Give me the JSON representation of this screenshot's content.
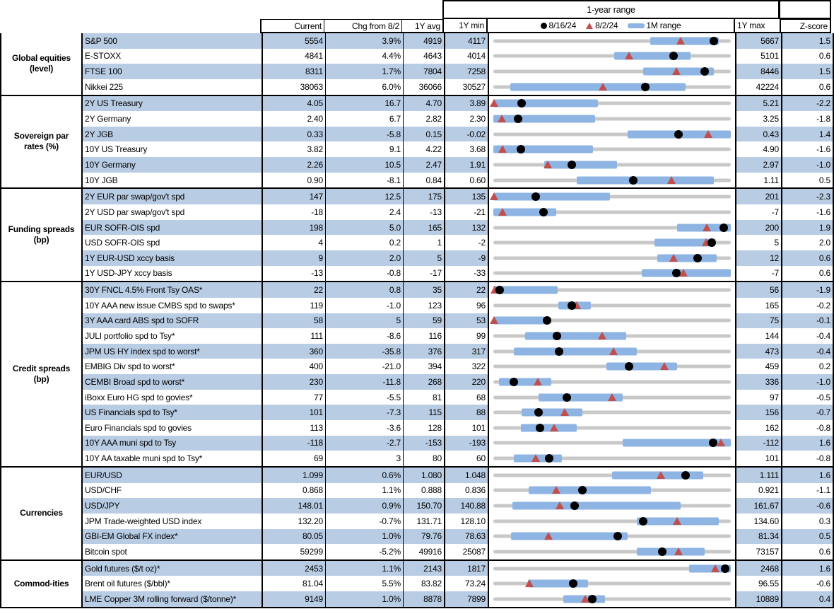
{
  "colors": {
    "row_blue": "#b8cce4",
    "bar_blue": "#8eb4e3",
    "marker_red": "#c0504d",
    "track_gray": "#c8c8c8"
  },
  "header": {
    "range_title": "1-year range",
    "columns": {
      "current": "Current",
      "chg": "Chg from 8/2",
      "avg": "1Y avg",
      "min": "1Y min",
      "max": "1Y max",
      "z": "Z-score"
    },
    "legend": {
      "dot_label": "8/16/24",
      "tri_label": "8/2/24",
      "bar_label": "1M range"
    }
  },
  "chart_data": {
    "type": "table",
    "description": "Market dashboard: current levels vs 1-year range. Gray track spans 1Y min..1Y max, blue bar = 1M range, black dot = 8/16/24 value, red triangle = 8/2/24 value. bar/tri/dot are fractions of the min-max track.",
    "sections": [
      {
        "label": "Global equities (level)",
        "rows": [
          {
            "name": "S&P 500",
            "current": "5554",
            "chg": "3.9%",
            "avg": "4919",
            "min": "4117",
            "max": "5667",
            "z": "1.5",
            "bar": [
              0.66,
              0.95
            ],
            "tri": 0.79,
            "dot": 0.93
          },
          {
            "name": "E-STOXX",
            "current": "4841",
            "chg": "4.4%",
            "avg": "4643",
            "min": "4014",
            "max": "5101",
            "z": "0.6",
            "bar": [
              0.51,
              0.83
            ],
            "tri": 0.57,
            "dot": 0.76
          },
          {
            "name": "FTSE 100",
            "current": "8311",
            "chg": "1.7%",
            "avg": "7804",
            "min": "7258",
            "max": "8446",
            "z": "1.5",
            "bar": [
              0.63,
              0.93
            ],
            "tri": 0.77,
            "dot": 0.89
          },
          {
            "name": "Nikkei 225",
            "current": "38063",
            "chg": "6.0%",
            "avg": "36066",
            "min": "30527",
            "max": "42224",
            "z": "0.6",
            "bar": [
              0.07,
              0.81
            ],
            "tri": 0.46,
            "dot": 0.64
          }
        ]
      },
      {
        "label": "Sovereign par rates (%)",
        "rows": [
          {
            "name": "2Y US Treasury",
            "current": "4.05",
            "chg": "16.7",
            "avg": "4.70",
            "min": "3.89",
            "max": "5.21",
            "z": "-2.2",
            "bar": [
              0,
              0.44
            ],
            "tri": 0.004,
            "dot": 0.12
          },
          {
            "name": "2Y Germany",
            "current": "2.40",
            "chg": "6.7",
            "avg": "2.82",
            "min": "2.30",
            "max": "3.25",
            "z": "-1.8",
            "bar": [
              0,
              0.43
            ],
            "tri": 0.035,
            "dot": 0.105
          },
          {
            "name": "2Y JGB",
            "current": "0.33",
            "chg": "-5.8",
            "avg": "0.15",
            "min": "-0.02",
            "max": "0.43",
            "z": "1.4",
            "bar": [
              0.565,
              1
            ],
            "tri": 0.905,
            "dot": 0.78
          },
          {
            "name": "10Y US Treasury",
            "current": "3.82",
            "chg": "9.1",
            "avg": "4.22",
            "min": "3.68",
            "max": "4.90",
            "z": "-1.6",
            "bar": [
              0,
              0.42
            ],
            "tri": 0.04,
            "dot": 0.115
          },
          {
            "name": "10Y Germany",
            "current": "2.26",
            "chg": "10.5",
            "avg": "2.47",
            "min": "1.91",
            "max": "2.97",
            "z": "-1.0",
            "bar": [
              0.215,
              0.52
            ],
            "tri": 0.23,
            "dot": 0.33
          },
          {
            "name": "10Y JGB",
            "current": "0.90",
            "chg": "-8.1",
            "avg": "0.84",
            "min": "0.60",
            "max": "1.11",
            "z": "0.5",
            "bar": [
              0.35,
              0.93
            ],
            "tri": 0.75,
            "dot": 0.59
          }
        ]
      },
      {
        "label": "Funding spreads (bp)",
        "rows": [
          {
            "name": "2Y EUR par swap/gov't spd",
            "current": "147",
            "chg": "12.5",
            "avg": "175",
            "min": "135",
            "max": "201",
            "z": "-2.3",
            "bar": [
              0,
              0.49
            ],
            "tri": 0.004,
            "dot": 0.18
          },
          {
            "name": "2Y USD par swap/gov't spd",
            "current": "-18",
            "chg": "2.4",
            "avg": "-13",
            "min": "-21",
            "max": "-7",
            "z": "-1.6",
            "bar": [
              0,
              0.265
            ],
            "tri": 0.04,
            "dot": 0.21
          },
          {
            "name": "EUR SOFR-OIS spd",
            "current": "198",
            "chg": "5.0",
            "avg": "165",
            "min": "132",
            "max": "200",
            "z": "1.9",
            "bar": [
              0.775,
              1
            ],
            "tri": 0.9,
            "dot": 0.97
          },
          {
            "name": "USD SOFR-OIS spd",
            "current": "4",
            "chg": "0.2",
            "avg": "1",
            "min": "-2",
            "max": "5",
            "z": "2.0",
            "bar": [
              0.68,
              0.935
            ],
            "tri": 0.895,
            "dot": 0.92
          },
          {
            "name": "1Y EUR-USD xccy basis",
            "current": "9",
            "chg": "2.0",
            "avg": "5",
            "min": "-9",
            "max": "12",
            "z": "0.6",
            "bar": [
              0.69,
              0.94
            ],
            "tri": 0.76,
            "dot": 0.86
          },
          {
            "name": "1Y USD-JPY xccy basis",
            "current": "-13",
            "chg": "-0.8",
            "avg": "-17",
            "min": "-33",
            "max": "-7",
            "z": "0.6",
            "bar": [
              0.625,
              1
            ],
            "tri": 0.8,
            "dot": 0.77
          }
        ]
      },
      {
        "label": "Credit spreads (bp)",
        "rows": [
          {
            "name": "30Y FNCL 4.5% Front Tsy OAS*",
            "current": "22",
            "chg": "0.8",
            "avg": "35",
            "min": "22",
            "max": "56",
            "z": "-1.9",
            "bar": [
              0,
              0.27
            ],
            "tri": 0.005,
            "dot": 0.028
          },
          {
            "name": "10Y AAA new issue CMBS spd to swaps*",
            "current": "119",
            "chg": "-1.0",
            "avg": "123",
            "min": "96",
            "max": "165",
            "z": "-0.2",
            "bar": [
              0.275,
              0.41
            ],
            "tri": 0.35,
            "dot": 0.33
          },
          {
            "name": "3Y AAA card ABS spd to SOFR",
            "current": "58",
            "chg": "5",
            "avg": "59",
            "min": "53",
            "max": "75",
            "z": "-0.1",
            "bar": [
              0,
              0.235
            ],
            "tri": 0.004,
            "dot": 0.227
          },
          {
            "name": "JULI portfolio spd to Tsy*",
            "current": "111",
            "chg": "-8.6",
            "avg": "116",
            "min": "99",
            "max": "144",
            "z": "-0.4",
            "bar": [
              0.135,
              0.56
            ],
            "tri": 0.458,
            "dot": 0.267
          },
          {
            "name": "JPM US HY index spd to worst*",
            "current": "360",
            "chg": "-35.8",
            "avg": "376",
            "min": "317",
            "max": "473",
            "z": "-0.4",
            "bar": [
              0.085,
              0.605
            ],
            "tri": 0.505,
            "dot": 0.276
          },
          {
            "name": "EMBIG Div spd to worst*",
            "current": "400",
            "chg": "-21.0",
            "avg": "394",
            "min": "322",
            "max": "459",
            "z": "0.2",
            "bar": [
              0.475,
              0.775
            ],
            "tri": 0.72,
            "dot": 0.57
          },
          {
            "name": "CEMBI Broad spd to worst*",
            "current": "230",
            "chg": "-11.8",
            "avg": "268",
            "min": "220",
            "max": "336",
            "z": "-1.0",
            "bar": [
              0.025,
              0.245
            ],
            "tri": 0.188,
            "dot": 0.086
          },
          {
            "name": "iBoxx Euro HG spd to govies*",
            "current": "77",
            "chg": "-5.5",
            "avg": "81",
            "min": "68",
            "max": "97",
            "z": "-0.5",
            "bar": [
              0.19,
              0.545
            ],
            "tri": 0.5,
            "dot": 0.31
          },
          {
            "name": "US Financials spd to Tsy*",
            "current": "101",
            "chg": "-7.3",
            "avg": "115",
            "min": "88",
            "max": "156",
            "z": "-0.7",
            "bar": [
              0.12,
              0.375
            ],
            "tri": 0.3,
            "dot": 0.191
          },
          {
            "name": "Euro Financials spd to govies",
            "current": "113",
            "chg": "-3.6",
            "avg": "128",
            "min": "101",
            "max": "162",
            "z": "-0.8",
            "bar": [
              0.115,
              0.35
            ],
            "tri": 0.256,
            "dot": 0.197
          },
          {
            "name": "10Y AAA muni spd to Tsy",
            "current": "-118",
            "chg": "-2.7",
            "avg": "-153",
            "min": "-193",
            "max": "-112",
            "z": "1.6",
            "bar": [
              0.545,
              1
            ],
            "tri": 0.959,
            "dot": 0.926
          },
          {
            "name": "10Y AA taxable muni spd to Tsy*",
            "current": "69",
            "chg": "3",
            "avg": "80",
            "min": "60",
            "max": "101",
            "z": "-0.8",
            "bar": [
              0.085,
              0.29
            ],
            "tri": 0.18,
            "dot": 0.235
          }
        ]
      },
      {
        "label": "Currencies",
        "rows": [
          {
            "name": "EUR/USD",
            "current": "1.099",
            "chg": "0.6%",
            "avg": "1.080",
            "min": "1.048",
            "max": "1.111",
            "z": "1.6",
            "bar": [
              0.5,
              0.885
            ],
            "tri": 0.705,
            "dot": 0.81
          },
          {
            "name": "USD/CHF",
            "current": "0.868",
            "chg": "1.1%",
            "avg": "0.888",
            "min": "0.836",
            "max": "0.921",
            "z": "-1.1",
            "bar": [
              0.15,
              0.665
            ],
            "tri": 0.266,
            "dot": 0.376
          },
          {
            "name": "USD/JPY",
            "current": "148.01",
            "chg": "0.9%",
            "avg": "150.70",
            "min": "140.88",
            "max": "161.67",
            "z": "-0.6",
            "bar": [
              0.08,
              0.79
            ],
            "tri": 0.279,
            "dot": 0.343
          },
          {
            "name": "JPM Trade-weighted USD index",
            "current": "132.20",
            "chg": "-0.7%",
            "avg": "131.71",
            "min": "128.10",
            "max": "134.60",
            "z": "0.3",
            "bar": [
              0.605,
              0.95
            ],
            "tri": 0.774,
            "dot": 0.631
          },
          {
            "name": "GBI-EM Global FX index*",
            "current": "80.05",
            "chg": "1.0%",
            "avg": "79.76",
            "min": "78.63",
            "max": "81.34",
            "z": "0.5",
            "bar": [
              0.075,
              0.565
            ],
            "tri": 0.232,
            "dot": 0.524
          },
          {
            "name": "Bitcoin spot",
            "current": "59299",
            "chg": "-5.2%",
            "avg": "49916",
            "min": "25087",
            "max": "73157",
            "z": "0.6",
            "bar": [
              0.605,
              0.89
            ],
            "tri": 0.779,
            "dot": 0.712
          }
        ]
      },
      {
        "label": "Commod-ities",
        "rows": [
          {
            "name": "Gold futures ($/t oz)*",
            "current": "2453",
            "chg": "1.1%",
            "avg": "2143",
            "min": "1817",
            "max": "2468",
            "z": "1.6",
            "bar": [
              0.825,
              1
            ],
            "tri": 0.936,
            "dot": 0.977
          },
          {
            "name": "Brent oil futures ($/bbl)*",
            "current": "81.04",
            "chg": "5.5%",
            "avg": "83.82",
            "min": "73.24",
            "max": "96.55",
            "z": "-0.6",
            "bar": [
              0.145,
              0.4
            ],
            "tri": 0.153,
            "dot": 0.335
          },
          {
            "name": "LME Copper 3M rolling forward ($/tonne)*",
            "current": "9149",
            "chg": "1.0%",
            "avg": "8878",
            "min": "7899",
            "max": "10889",
            "z": "0.4",
            "bar": [
              0.295,
              0.47
            ],
            "tri": 0.388,
            "dot": 0.418
          }
        ]
      }
    ]
  }
}
